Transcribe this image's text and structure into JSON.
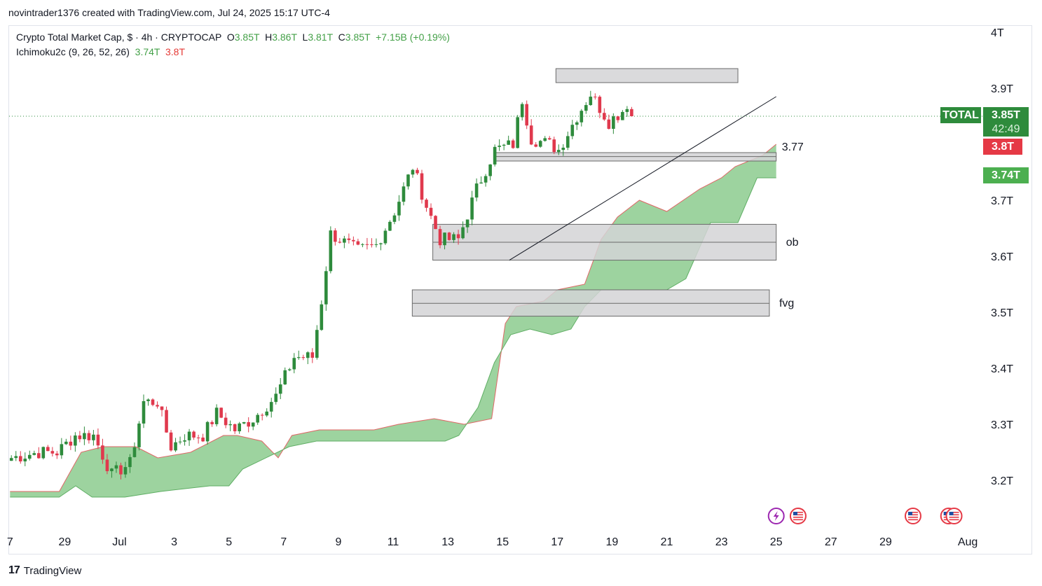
{
  "header": {
    "attribution": "novintrader1376 created with TradingView.com, Jul 24, 2025 15:17 UTC-4"
  },
  "legend": {
    "symbol": "Crypto Total Market Cap, $ · 4h · CRYPTOCAP",
    "o_label": "O",
    "o_value": "3.85T",
    "h_label": "H",
    "h_value": "3.86T",
    "l_label": "L",
    "l_value": "3.81T",
    "c_label": "C",
    "c_value": "3.85T",
    "change": "+7.15B (+0.19%)",
    "indicator": "Ichimoku2c (9, 26, 52, 26)",
    "ind_value_1": "3.74T",
    "ind_value_2": "3.8T"
  },
  "price_tags": {
    "symbol_tag": "TOTAL",
    "last_price": "3.85T",
    "countdown": "42:49",
    "span_b": "3.8T",
    "span_a": "3.74T"
  },
  "colors": {
    "up": "#2e8b3c",
    "down": "#e0394d",
    "cloud_green": "#7cc47f",
    "cloud_edge_red": "#e06666",
    "zone_fill": "#d3d3d6",
    "zone_stroke": "#6a6a6a",
    "tag_green": "#2e8b3c",
    "tag_red": "#e53945",
    "tag_light_green": "#4caf50"
  },
  "footer": {
    "brand": "TradingView"
  },
  "chart_data": {
    "type": "candlestick",
    "timeframe": "4h",
    "ylim": [
      3.15,
      4.0
    ],
    "yticks": [
      "3.2T",
      "3.3T",
      "3.4T",
      "3.5T",
      "3.6T",
      "3.7T",
      "3.8T",
      "3.9T",
      "4T"
    ],
    "ytick_values": [
      3.2,
      3.3,
      3.4,
      3.5,
      3.6,
      3.7,
      3.8,
      3.9,
      4.0
    ],
    "xticks": [
      "7",
      "29",
      "Jul",
      "3",
      "5",
      "7",
      "9",
      "11",
      "13",
      "15",
      "17",
      "19",
      "21",
      "23",
      "25",
      "27",
      "29",
      "Aug"
    ],
    "xtick_days": [
      -4,
      -2,
      0,
      2,
      4,
      6,
      8,
      10,
      12,
      14,
      16,
      18,
      20,
      22,
      24,
      26,
      28,
      31
    ],
    "x_start_day": -3.95,
    "candle_count": 137,
    "last_price": 3.85,
    "anchors": [
      [
        0,
        3.24
      ],
      [
        6,
        3.25
      ],
      [
        10,
        3.25
      ],
      [
        14,
        3.28
      ],
      [
        18,
        3.28
      ],
      [
        22,
        3.21
      ],
      [
        26,
        3.23
      ],
      [
        29,
        3.34
      ],
      [
        32,
        3.34
      ],
      [
        35,
        3.26
      ],
      [
        38,
        3.28
      ],
      [
        42,
        3.28
      ],
      [
        45,
        3.32
      ],
      [
        49,
        3.29
      ],
      [
        53,
        3.31
      ],
      [
        58,
        3.35
      ],
      [
        62,
        3.42
      ],
      [
        66,
        3.42
      ],
      [
        68,
        3.52
      ],
      [
        70,
        3.64
      ],
      [
        76,
        3.61
      ],
      [
        80,
        3.62
      ],
      [
        84,
        3.68
      ],
      [
        88,
        3.76
      ],
      [
        91,
        3.69
      ],
      [
        94,
        3.63
      ],
      [
        98,
        3.63
      ],
      [
        102,
        3.72
      ],
      [
        106,
        3.79
      ],
      [
        110,
        3.8
      ],
      [
        112,
        3.88
      ],
      [
        114,
        3.81
      ],
      [
        118,
        3.8
      ],
      [
        120,
        3.79
      ],
      [
        124,
        3.85
      ],
      [
        127,
        3.89
      ],
      [
        131,
        3.84
      ],
      [
        134,
        3.86
      ],
      [
        138,
        3.91
      ],
      [
        141,
        3.86
      ],
      [
        145,
        3.84
      ],
      [
        149,
        3.78
      ],
      [
        151,
        3.84
      ],
      [
        152,
        3.85
      ]
    ],
    "ichimoku_cloud": {
      "upper": [
        [
          -4.0,
          3.18
        ],
        [
          -2.2,
          3.18
        ],
        [
          -1.4,
          3.25
        ],
        [
          -0.6,
          3.26
        ],
        [
          0.6,
          3.26
        ],
        [
          1.4,
          3.24
        ],
        [
          2.6,
          3.25
        ],
        [
          3.8,
          3.28
        ],
        [
          4.3,
          3.28
        ],
        [
          5.2,
          3.27
        ],
        [
          5.8,
          3.24
        ],
        [
          6.3,
          3.28
        ],
        [
          7.3,
          3.29
        ],
        [
          8.4,
          3.29
        ],
        [
          9.3,
          3.29
        ],
        [
          10.2,
          3.3
        ],
        [
          11.5,
          3.31
        ],
        [
          12.6,
          3.3
        ],
        [
          13.6,
          3.31
        ],
        [
          14.1,
          3.48
        ],
        [
          14.5,
          3.51
        ],
        [
          15.5,
          3.52
        ],
        [
          16.0,
          3.54
        ],
        [
          17.0,
          3.55
        ],
        [
          17.6,
          3.63
        ],
        [
          18.2,
          3.67
        ],
        [
          19.0,
          3.7
        ],
        [
          20.0,
          3.68
        ],
        [
          21.2,
          3.72
        ],
        [
          22.0,
          3.74
        ],
        [
          22.5,
          3.76
        ],
        [
          23.5,
          3.78
        ],
        [
          24.0,
          3.8
        ]
      ],
      "lower": [
        [
          24.0,
          3.74
        ],
        [
          23.3,
          3.74
        ],
        [
          22.6,
          3.66
        ],
        [
          21.6,
          3.66
        ],
        [
          20.7,
          3.56
        ],
        [
          20.0,
          3.54
        ],
        [
          18.8,
          3.54
        ],
        [
          17.6,
          3.54
        ],
        [
          17.0,
          3.51
        ],
        [
          16.5,
          3.47
        ],
        [
          15.8,
          3.46
        ],
        [
          15.0,
          3.47
        ],
        [
          14.3,
          3.46
        ],
        [
          13.7,
          3.41
        ],
        [
          13.1,
          3.33
        ],
        [
          12.4,
          3.28
        ],
        [
          11.9,
          3.27
        ],
        [
          9.5,
          3.27
        ],
        [
          8.7,
          3.27
        ],
        [
          7.2,
          3.27
        ],
        [
          6.2,
          3.26
        ],
        [
          4.5,
          3.22
        ],
        [
          4.0,
          3.19
        ],
        [
          3.3,
          3.19
        ],
        [
          1.5,
          3.18
        ],
        [
          0.2,
          3.17
        ],
        [
          -1.0,
          3.17
        ],
        [
          -1.6,
          3.19
        ],
        [
          -2.2,
          3.17
        ],
        [
          -4.0,
          3.17
        ]
      ]
    },
    "zones": [
      {
        "label": "",
        "x0": 15.95,
        "x1": 22.6,
        "y0": 3.91,
        "y1": 3.935,
        "mid": null
      },
      {
        "label": "3.77",
        "x0": 13.75,
        "x1": 24.0,
        "y0": 3.77,
        "y1": 3.785,
        "mid": 3.778
      },
      {
        "label": "ob",
        "x0": 11.45,
        "x1": 24.0,
        "y0": 3.593,
        "y1": 3.657,
        "mid": 3.625
      },
      {
        "label": "fvg",
        "x0": 10.7,
        "x1": 23.75,
        "y0": 3.493,
        "y1": 3.54,
        "mid": 3.516
      }
    ],
    "trendline": [
      [
        14.25,
        3.593
      ],
      [
        24.0,
        3.885
      ]
    ],
    "event_markers": [
      {
        "type": "lightning",
        "day": 24.0
      },
      {
        "type": "us-flag",
        "day": 24.8
      },
      {
        "type": "us-flag",
        "day": 29.0
      },
      {
        "type": "us-flag",
        "day": 30.3
      },
      {
        "type": "us-flag",
        "day": 30.5
      }
    ]
  }
}
